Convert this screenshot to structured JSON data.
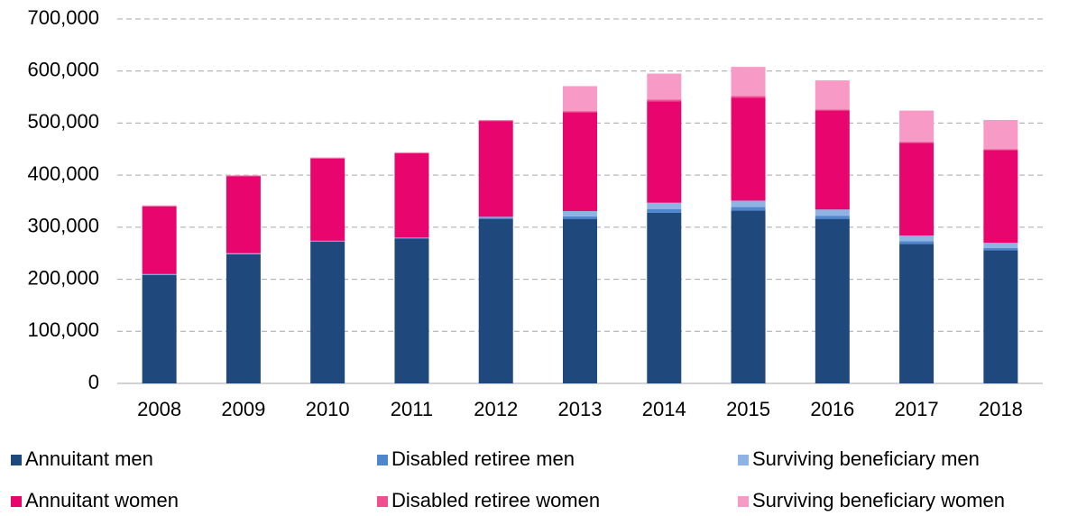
{
  "chart_data": {
    "type": "stacked_bar",
    "categories": [
      "2008",
      "2009",
      "2010",
      "2011",
      "2012",
      "2013",
      "2014",
      "2015",
      "2016",
      "2017",
      "2018"
    ],
    "series": [
      {
        "name": "Annuitant men",
        "color": "#1f497d",
        "values": [
          208000,
          248000,
          272000,
          278000,
          316000,
          316000,
          328000,
          332000,
          316000,
          268000,
          256000
        ]
      },
      {
        "name": "Disabled retiree men",
        "color": "#4f86cf",
        "values": [
          1000,
          1000,
          1000,
          1000,
          2000,
          5000,
          7000,
          7000,
          6000,
          5000,
          4000
        ]
      },
      {
        "name": "Surviving beneficiary men",
        "color": "#8fb4e3",
        "values": [
          1000,
          1000,
          1000,
          1000,
          2000,
          10000,
          12000,
          12000,
          12000,
          11000,
          10000
        ]
      },
      {
        "name": "Annuitant women",
        "color": "#e8066e",
        "values": [
          130000,
          148000,
          158000,
          162000,
          184000,
          190000,
          195000,
          198000,
          190000,
          178000,
          178000
        ]
      },
      {
        "name": "Disabled retiree women",
        "color": "#f0508f",
        "values": [
          1000,
          1000,
          1000,
          1000,
          1000,
          2000,
          3000,
          3000,
          2000,
          2000,
          2000
        ]
      },
      {
        "name": "Surviving beneficiary women",
        "color": "#f79ac6",
        "values": [
          1000,
          1000,
          1000,
          1000,
          1000,
          48000,
          50000,
          56000,
          56000,
          60000,
          56000
        ]
      }
    ],
    "ylim": [
      0,
      700000
    ],
    "yticks": [
      0,
      {
        "value": 100000,
        "label": "100,000"
      },
      {
        "value": 200000,
        "label": "200,000"
      },
      {
        "value": 300000,
        "label": "300,000"
      },
      {
        "value": 400000,
        "label": "400,000"
      },
      {
        "value": 500000,
        "label": "500,000"
      },
      {
        "value": 600000,
        "label": "600,000"
      },
      {
        "value": 700000,
        "label": "700,000"
      }
    ],
    "grid": true
  }
}
